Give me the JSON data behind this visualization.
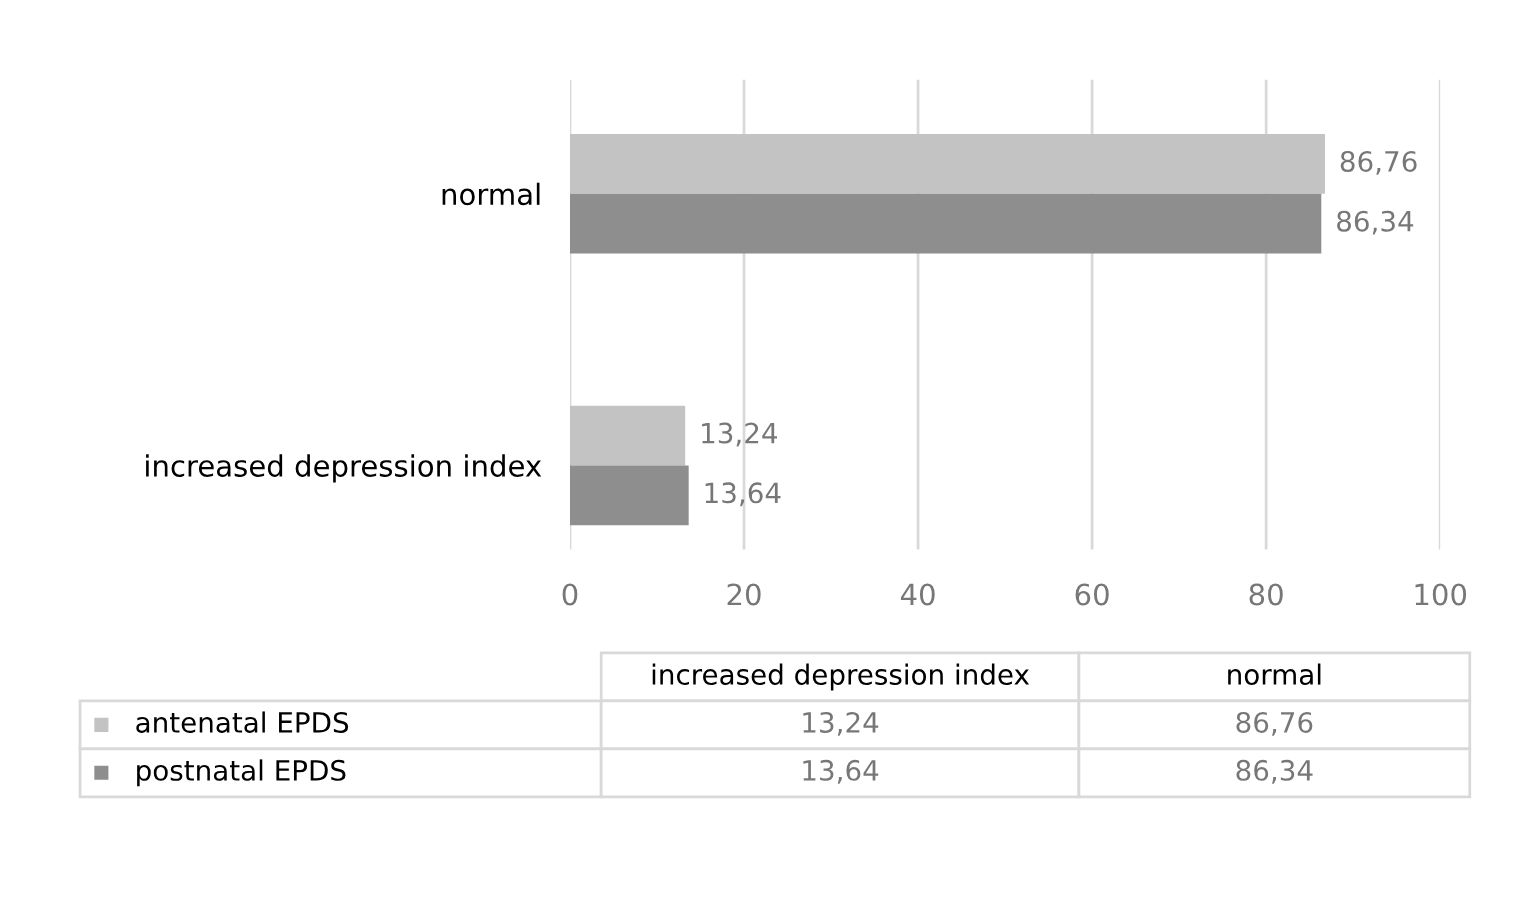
{
  "chart_data": {
    "type": "bar",
    "orientation": "horizontal",
    "categories": [
      "normal",
      "increased depression index"
    ],
    "series": [
      {
        "name": "antenatal EPDS",
        "color": "#c3c3c3",
        "values": [
          86.76,
          13.24
        ],
        "value_labels": [
          "86,76",
          "13,24"
        ]
      },
      {
        "name": "postnatal EPDS",
        "color": "#8e8e8e",
        "values": [
          86.34,
          13.64
        ],
        "value_labels": [
          "86,34",
          "13,64"
        ]
      }
    ],
    "xlim": [
      0,
      100
    ],
    "xticks": [
      0,
      20,
      40,
      60,
      80,
      100
    ],
    "grid": "x",
    "legend": "bottom"
  }
}
